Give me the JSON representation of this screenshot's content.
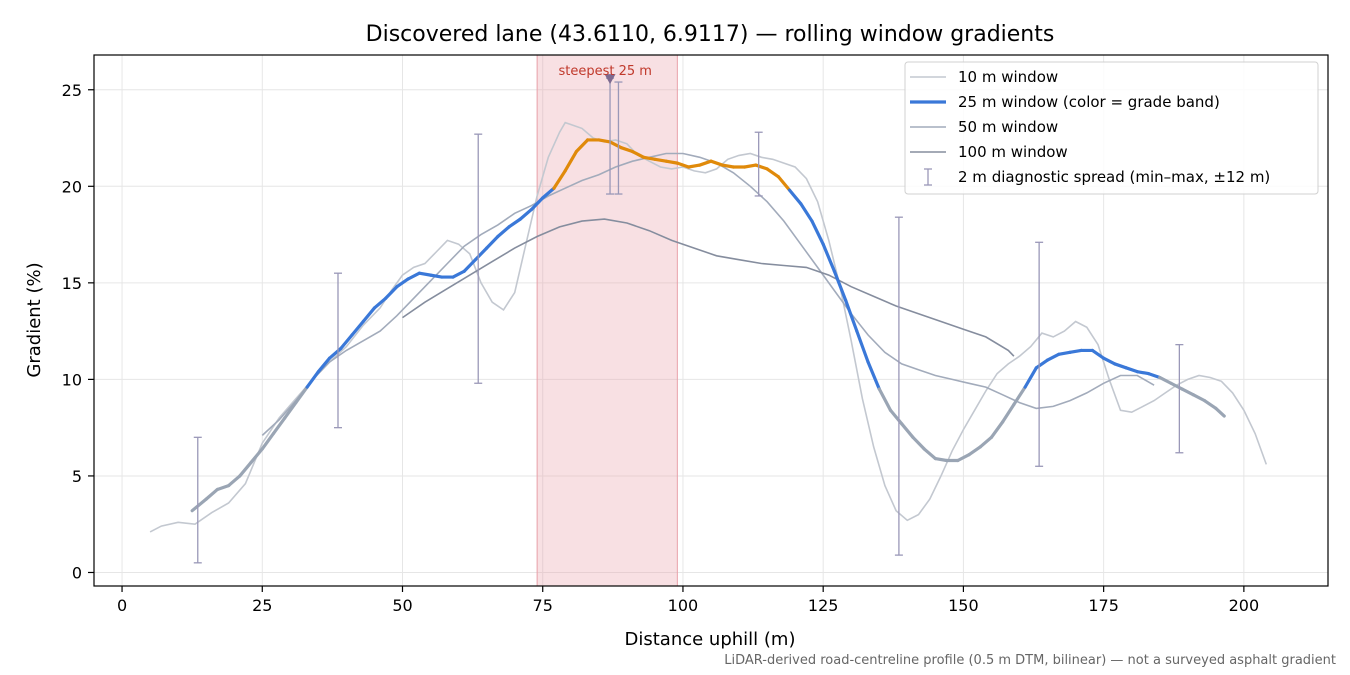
{
  "chart_data": {
    "type": "line",
    "title": "Discovered lane (43.6110, 6.9117) — rolling window gradients",
    "xlabel": "Distance uphill (m)",
    "ylabel": "Gradient (%)",
    "xlim": [
      -5,
      215
    ],
    "ylim": [
      -0.7,
      26.8
    ],
    "x_ticks": [
      0,
      25,
      50,
      75,
      100,
      125,
      150,
      175,
      200
    ],
    "y_ticks": [
      0,
      5,
      10,
      15,
      20,
      25
    ],
    "grid": true,
    "legend_position": "top-right",
    "footnote": "LiDAR-derived road-centreline profile (0.5 m DTM, bilinear) — not a surveyed asphalt gradient",
    "highlight": {
      "label": "steepest 25 m",
      "x_range": [
        74,
        99
      ],
      "peak_x": 87,
      "peak_y": 25.5,
      "color": "#e8a0a8"
    },
    "grade_colors": {
      "low": "#9aa5b4",
      "mid": "#3a78d8",
      "high": "#e08a0a"
    },
    "series": [
      {
        "name": "10 m window",
        "color": "#c3c8d0",
        "x": [
          5,
          7,
          10,
          13,
          16,
          19,
          22,
          25,
          28,
          31,
          34,
          37,
          40,
          43,
          46,
          48,
          50,
          52,
          54,
          56,
          58,
          60,
          62,
          64,
          66,
          68,
          70,
          72,
          74,
          76,
          78,
          79,
          80,
          82,
          84,
          86,
          88,
          90,
          92,
          94,
          96,
          98,
          100,
          102,
          104,
          106,
          108,
          110,
          112,
          114,
          116,
          118,
          120,
          122,
          124,
          126,
          128,
          130,
          132,
          134,
          136,
          138,
          140,
          142,
          144,
          146,
          148,
          150,
          152,
          154,
          156,
          158,
          160,
          162,
          164,
          166,
          168,
          170,
          172,
          174,
          176,
          178,
          180,
          182,
          184,
          186,
          188,
          190,
          192,
          194,
          196,
          198,
          200,
          202,
          204
        ],
        "y": [
          2.1,
          2.4,
          2.6,
          2.5,
          3.1,
          3.6,
          4.6,
          6.7,
          8.0,
          9.0,
          10.0,
          10.9,
          11.7,
          12.8,
          13.7,
          14.6,
          15.4,
          15.8,
          16.0,
          16.6,
          17.2,
          17.0,
          16.5,
          15.0,
          14.0,
          13.6,
          14.5,
          17.0,
          19.5,
          21.5,
          22.8,
          23.3,
          23.2,
          23.0,
          22.5,
          22.3,
          22.4,
          22.2,
          21.6,
          21.3,
          21.0,
          20.9,
          21.0,
          20.8,
          20.7,
          20.9,
          21.4,
          21.6,
          21.7,
          21.5,
          21.4,
          21.2,
          21.0,
          20.4,
          19.2,
          17.2,
          14.8,
          12.0,
          9.0,
          6.5,
          4.5,
          3.2,
          2.7,
          3.0,
          3.8,
          5.0,
          6.3,
          7.4,
          8.4,
          9.4,
          10.3,
          10.8,
          11.2,
          11.7,
          12.4,
          12.2,
          12.5,
          13.0,
          12.7,
          11.8,
          10.0,
          8.4,
          8.3,
          8.6,
          8.9,
          9.3,
          9.7,
          10.0,
          10.2,
          10.1,
          9.9,
          9.3,
          8.4,
          7.2,
          5.6
        ]
      },
      {
        "name": "25 m window (color = grade band)",
        "color": "#3a78d8",
        "x": [
          12.5,
          15,
          17,
          19,
          21,
          23,
          25,
          27,
          29,
          31,
          33,
          35,
          37,
          39,
          41,
          43,
          45,
          47,
          49,
          51,
          53,
          55,
          57,
          59,
          61,
          63,
          65,
          67,
          69,
          71,
          73,
          75,
          77,
          79,
          81,
          83,
          85,
          87,
          89,
          91,
          93,
          95,
          97,
          99,
          101,
          103,
          105,
          107,
          109,
          111,
          113,
          115,
          117,
          119,
          121,
          123,
          125,
          127,
          129,
          131,
          133,
          135,
          137,
          139,
          141,
          143,
          145,
          147,
          149,
          151,
          153,
          155,
          157,
          159,
          161,
          163,
          165,
          167,
          169,
          171,
          173,
          175,
          177,
          179,
          181,
          183,
          185,
          187,
          189,
          191,
          193,
          195,
          196.5
        ],
        "y": [
          3.2,
          3.8,
          4.3,
          4.5,
          5.0,
          5.7,
          6.4,
          7.2,
          8.0,
          8.8,
          9.6,
          10.4,
          11.1,
          11.6,
          12.3,
          13.0,
          13.7,
          14.2,
          14.8,
          15.2,
          15.5,
          15.4,
          15.3,
          15.3,
          15.6,
          16.2,
          16.8,
          17.4,
          17.9,
          18.3,
          18.8,
          19.4,
          19.9,
          20.8,
          21.8,
          22.4,
          22.4,
          22.3,
          22.0,
          21.8,
          21.5,
          21.4,
          21.3,
          21.2,
          21.0,
          21.1,
          21.3,
          21.1,
          21.0,
          21.0,
          21.1,
          20.9,
          20.5,
          19.8,
          19.1,
          18.2,
          17.0,
          15.6,
          14.1,
          12.5,
          10.9,
          9.5,
          8.4,
          7.7,
          7.0,
          6.4,
          5.9,
          5.8,
          5.8,
          6.1,
          6.5,
          7.0,
          7.8,
          8.7,
          9.6,
          10.6,
          11.0,
          11.3,
          11.4,
          11.5,
          11.5,
          11.1,
          10.8,
          10.6,
          10.4,
          10.3,
          10.1,
          9.8,
          9.5,
          9.2,
          8.9,
          8.5,
          8.1
        ]
      },
      {
        "name": "50 m window",
        "color": "#a2abbb",
        "x": [
          25,
          28,
          31,
          34,
          37,
          40,
          43,
          46,
          49,
          52,
          55,
          58,
          61,
          64,
          67,
          70,
          73,
          76,
          79,
          82,
          85,
          88,
          91,
          94,
          97,
          100,
          103,
          106,
          109,
          112,
          115,
          118,
          121,
          124,
          127,
          130,
          133,
          136,
          139,
          142,
          145,
          148,
          151,
          154,
          157,
          160,
          163,
          166,
          169,
          172,
          175,
          178,
          181,
          184
        ],
        "y": [
          7.1,
          7.9,
          8.9,
          10.0,
          10.9,
          11.5,
          12.0,
          12.5,
          13.3,
          14.2,
          15.1,
          16.0,
          16.9,
          17.5,
          18.0,
          18.6,
          19.0,
          19.5,
          19.9,
          20.3,
          20.6,
          21.0,
          21.3,
          21.5,
          21.7,
          21.7,
          21.5,
          21.2,
          20.7,
          20.0,
          19.2,
          18.2,
          17.0,
          15.8,
          14.6,
          13.4,
          12.3,
          11.4,
          10.8,
          10.5,
          10.2,
          10.0,
          9.8,
          9.6,
          9.2,
          8.8,
          8.5,
          8.6,
          8.9,
          9.3,
          9.8,
          10.2,
          10.2,
          9.7
        ]
      },
      {
        "name": "100 m window",
        "color": "#858d9e",
        "x": [
          50,
          54,
          58,
          62,
          66,
          70,
          74,
          78,
          82,
          86,
          90,
          94,
          98,
          102,
          106,
          110,
          114,
          118,
          122,
          126,
          130,
          134,
          138,
          142,
          146,
          150,
          154,
          158,
          159
        ],
        "y": [
          13.2,
          14.0,
          14.7,
          15.4,
          16.1,
          16.8,
          17.4,
          17.9,
          18.2,
          18.3,
          18.1,
          17.7,
          17.2,
          16.8,
          16.4,
          16.2,
          16.0,
          15.9,
          15.8,
          15.4,
          14.8,
          14.3,
          13.8,
          13.4,
          13.0,
          12.6,
          12.2,
          11.5,
          11.2
        ]
      }
    ],
    "diagnostic_spread": {
      "name": "2 m diagnostic spread (min–max, ±12 m)",
      "color": "#9a98b8",
      "points": [
        {
          "x": 13.5,
          "min": 0.5,
          "max": 7.0
        },
        {
          "x": 38.5,
          "min": 7.5,
          "max": 15.5
        },
        {
          "x": 63.5,
          "min": 9.8,
          "max": 22.7
        },
        {
          "x": 87,
          "min": 19.6,
          "max": 25.6
        },
        {
          "x": 88.5,
          "min": 19.6,
          "max": 25.4
        },
        {
          "x": 113.5,
          "min": 19.5,
          "max": 22.8
        },
        {
          "x": 138.5,
          "min": 0.9,
          "max": 18.4
        },
        {
          "x": 163.5,
          "min": 5.5,
          "max": 17.1
        },
        {
          "x": 188.5,
          "min": 6.2,
          "max": 11.8
        }
      ]
    }
  }
}
